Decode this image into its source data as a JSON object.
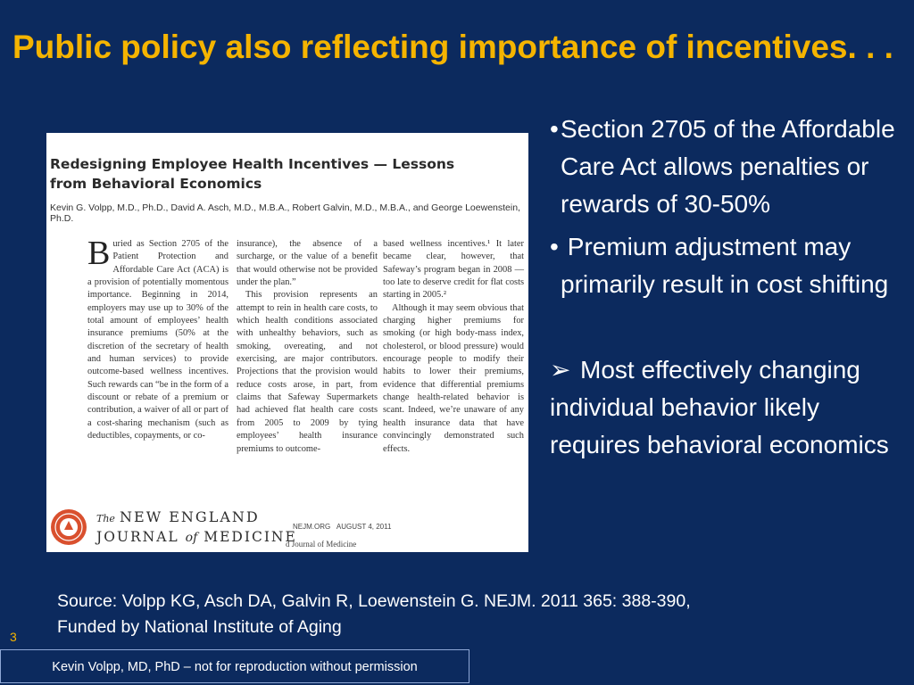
{
  "slide": {
    "title": "Public policy also reflecting importance of incentives. . .",
    "slide_number": "3",
    "footer": "Kevin Volpp, MD, PhD – not for reproduction without permission",
    "source_line1": "Source: Volpp KG, Asch DA, Galvin R, Loewenstein G. NEJM. 2011 365: 388-390,",
    "source_line2": "Funded by National Institute of Aging"
  },
  "bullets": {
    "b1_marker": "•",
    "b1": "Section 2705 of the Affordable Care Act allows penalties or rewards of 30-50%",
    "b2_marker": "•",
    "b2": "Premium adjustment may primarily result in cost shifting",
    "b3_marker": "➢",
    "b3": "Most effectively changing individual behavior likely requires behavioral economics"
  },
  "article": {
    "title": "Redesigning Employee Health Incentives — Lessons from Behavioral Economics",
    "authors": "Kevin G. Volpp, M.D., Ph.D., David A. Asch, M.D., M.B.A., Robert Galvin, M.D., M.B.A., and George Loewenstein, Ph.D.",
    "dropcap": "B",
    "col1": "uried as Section 2705 of the Patient Protection and Affordable Care Act (ACA) is a provision of potentially momentous importance. Beginning in 2014, employers may use up to 30% of the total amount of employees’ health insurance premiums (50% at the discretion of the secretary of health and human services) to provide outcome-based wellness incentives. Such rewards can “be in the form of a discount or rebate of a premium or contribution, a waiver of all or part of a cost-sharing mechanism (such as deductibles, copayments, or co-",
    "col2_p1": "insurance), the absence of a surcharge, or the value of a benefit that would otherwise not be provided under the plan.”",
    "col2_p2": "This provision represents an attempt to rein in health care costs, to which health conditions associated with unhealthy behaviors, such as smoking, overeating, and not exercising, are major contributors. Projections that the provision would reduce costs arose, in part, from claims that Safeway Supermarkets had achieved flat health care costs from 2005 to 2009 by tying employees’ health insurance premiums to outcome-",
    "col3_p1": "based wellness incentives.¹ It later became clear, however, that Safeway’s program began in 2008 — too late to deserve credit for flat costs starting in 2005.²",
    "col3_p2": "Although it may seem obvious that charging higher premiums for smoking (or high body-mass index, cholesterol, or blood pressure) would encourage people to modify their habits to lower their premiums, evidence that differential premiums change health-related behavior is scant. Indeed, we’re unaware of any health insurance data that have convincingly demonstrated such effects.",
    "journal_the": "The",
    "journal_line1": "NEW ENGLAND",
    "journal_journal": "JOURNAL",
    "journal_of": "of",
    "journal_medicine": "MEDICINE",
    "nejm_org": "NEJM.ORG",
    "date": "AUGUST 4, 2011",
    "copyright_fragment": "d Journal of Medicine"
  },
  "colors": {
    "background": "#0c2a5e",
    "title": "#f5b400",
    "text": "#ffffff"
  }
}
